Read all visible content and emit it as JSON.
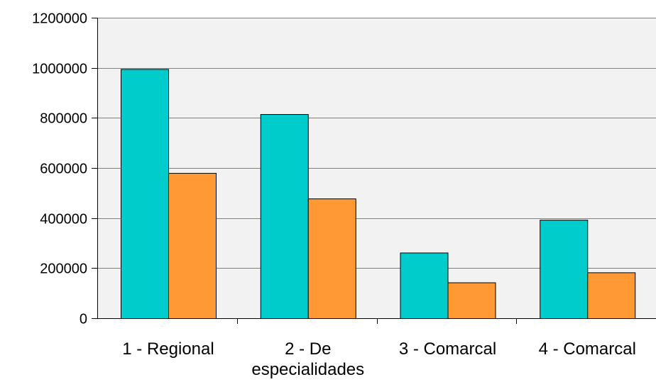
{
  "chart_data": {
    "type": "bar",
    "categories": [
      [
        "1 - Regional"
      ],
      [
        "2 - De",
        "especialidades"
      ],
      [
        "3 - Comarcal"
      ],
      [
        "4 - Comarcal"
      ]
    ],
    "series": [
      {
        "values": [
          995000,
          815000,
          262000,
          393000
        ],
        "color": "#00CCCC"
      },
      {
        "values": [
          580000,
          478000,
          143000,
          183000
        ],
        "color": "#FF9933"
      }
    ],
    "ylim": [
      0,
      1200000
    ],
    "yticks": [
      0,
      200000,
      400000,
      600000,
      800000,
      1000000,
      1200000
    ],
    "ytick_labels": [
      "0",
      "200000",
      "400000",
      "600000",
      "800000",
      "1000000",
      "1200000"
    ],
    "grid": true,
    "plot_background": "#F2F2F2",
    "grid_color": "#808080",
    "bar_border_color": "#000000"
  }
}
